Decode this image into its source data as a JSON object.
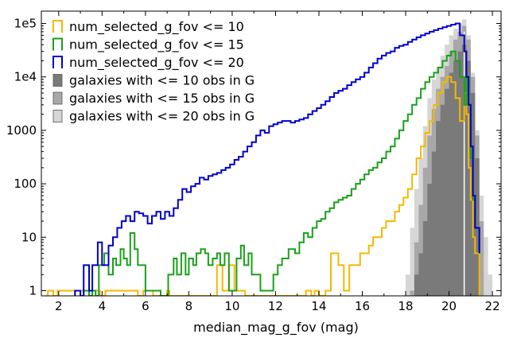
{
  "chart_data": {
    "type": "histogram",
    "xlabel": "median_mag_g_fov (mag)",
    "ylabel": "",
    "xlim": [
      1.2,
      22.4
    ],
    "ylim": [
      0.8,
      170000
    ],
    "yscale": "log",
    "x_ticks": [
      2,
      4,
      6,
      8,
      10,
      12,
      14,
      16,
      18,
      20,
      22
    ],
    "y_ticks": [
      {
        "value": 1,
        "label": "1"
      },
      {
        "value": 10,
        "label": "10"
      },
      {
        "value": 100,
        "label": "100"
      },
      {
        "value": 1000,
        "label": "1000"
      },
      {
        "value": 10000,
        "label": "1e4"
      },
      {
        "value": 100000,
        "label": "1e5"
      }
    ],
    "grid": false,
    "legend_placement": "top-left",
    "series": [
      {
        "name": "num_selected_g_fov <= 10",
        "style": "step",
        "color": "#f5b800",
        "x": [
          1.5,
          1.75,
          1.95,
          3.9,
          4.15,
          5.65,
          5.9,
          6.35,
          7.0,
          7.1,
          9.3,
          9.55,
          9.65,
          9.85,
          10.1,
          10.6,
          13.4,
          13.65,
          13.8,
          14.0,
          14.3,
          14.55,
          14.9,
          15.15,
          15.4,
          15.65,
          15.9,
          16.1,
          16.3,
          16.5,
          16.7,
          16.9,
          17.1,
          17.3,
          17.5,
          17.7,
          17.9,
          18.1,
          18.3,
          18.5,
          18.7,
          18.9,
          19.1,
          19.3,
          19.5,
          19.7,
          19.9,
          20.1,
          20.3,
          20.5,
          20.7,
          20.8,
          20.9,
          21.0,
          21.1,
          21.2,
          21.4
        ],
        "y": [
          1,
          0,
          1,
          0,
          1,
          0,
          1,
          0,
          1,
          0,
          3,
          1,
          1,
          3,
          1,
          0,
          1,
          0,
          1,
          0,
          1,
          5,
          3,
          1,
          3,
          3,
          5,
          5,
          7,
          10,
          10,
          15,
          20,
          20,
          30,
          40,
          55,
          80,
          150,
          300,
          500,
          900,
          1500,
          3000,
          5000,
          8000,
          10000,
          8000,
          4000,
          1500,
          5000,
          2000,
          200,
          50,
          10,
          5
        ]
      },
      {
        "name": "num_selected_g_fov <= 15",
        "style": "step",
        "color": "#1aa01a",
        "x": [
          2.75,
          3.0,
          3.15,
          3.4,
          3.55,
          3.7,
          3.85,
          4.1,
          4.3,
          4.5,
          4.65,
          4.85,
          5.0,
          5.15,
          5.3,
          5.5,
          5.65,
          5.85,
          6.0,
          6.2,
          6.35,
          6.55,
          6.7,
          6.9,
          7.05,
          7.3,
          7.45,
          7.65,
          7.85,
          8.0,
          8.2,
          8.35,
          8.55,
          8.75,
          8.9,
          9.1,
          9.3,
          9.45,
          9.65,
          9.85,
          10.0,
          10.2,
          10.4,
          10.55,
          10.75,
          10.9,
          11.1,
          11.3,
          11.5,
          11.7,
          11.9,
          12.1,
          12.3,
          12.6,
          12.9,
          13.1,
          13.3,
          13.5,
          13.7,
          13.9,
          14.1,
          14.3,
          14.5,
          14.7,
          14.9,
          15.1,
          15.3,
          15.5,
          15.7,
          15.9,
          16.1,
          16.3,
          16.5,
          16.7,
          16.9,
          17.1,
          17.3,
          17.5,
          17.7,
          17.9,
          18.1,
          18.3,
          18.5,
          18.7,
          18.9,
          19.1,
          19.3,
          19.5,
          19.7,
          19.9,
          20.1,
          20.3,
          20.5,
          20.7,
          20.8,
          20.9,
          21.0,
          21.1,
          21.2,
          21.4
        ],
        "y": [
          1,
          0,
          1,
          0,
          1,
          0,
          3,
          5,
          2,
          4,
          3,
          6,
          4,
          3,
          12,
          6,
          3,
          3,
          1,
          1,
          1,
          1,
          0,
          0,
          2,
          4,
          2,
          5,
          2,
          4,
          3,
          5,
          6,
          5,
          3,
          4,
          5,
          3,
          5,
          1,
          1,
          4,
          7,
          3,
          5,
          2,
          2,
          1,
          1,
          1,
          2,
          3,
          4,
          6,
          5,
          8,
          12,
          10,
          15,
          20,
          22,
          30,
          35,
          45,
          50,
          55,
          60,
          80,
          100,
          120,
          150,
          180,
          200,
          250,
          300,
          400,
          500,
          700,
          1000,
          1500,
          2000,
          3000,
          4000,
          6000,
          8000,
          10000,
          12000,
          15000,
          20000,
          25000,
          30000,
          20000,
          10000,
          3000,
          10000,
          3000,
          300,
          50,
          15,
          5
        ]
      },
      {
        "name": "num_selected_g_fov <= 20",
        "style": "step",
        "color": "#0000cc",
        "x": [
          2.75,
          3.0,
          3.15,
          3.4,
          3.55,
          3.8,
          4.0,
          4.3,
          4.5,
          4.7,
          4.9,
          5.1,
          5.3,
          5.5,
          5.7,
          5.9,
          6.1,
          6.3,
          6.5,
          6.7,
          6.9,
          7.1,
          7.3,
          7.5,
          7.7,
          7.9,
          8.1,
          8.3,
          8.5,
          8.7,
          8.9,
          9.1,
          9.3,
          9.5,
          9.7,
          9.9,
          10.1,
          10.3,
          10.5,
          10.7,
          10.9,
          11.1,
          11.3,
          11.5,
          11.7,
          11.9,
          12.1,
          12.3,
          12.5,
          12.7,
          12.9,
          13.1,
          13.3,
          13.5,
          13.7,
          13.9,
          14.1,
          14.3,
          14.5,
          14.7,
          14.9,
          15.1,
          15.3,
          15.5,
          15.7,
          15.9,
          16.1,
          16.3,
          16.5,
          16.7,
          16.9,
          17.1,
          17.3,
          17.5,
          17.7,
          17.9,
          18.1,
          18.3,
          18.5,
          18.7,
          18.9,
          19.1,
          19.3,
          19.5,
          19.7,
          19.9,
          20.1,
          20.3,
          20.5,
          20.7,
          20.8,
          20.9,
          21.0,
          21.1,
          21.2,
          21.4
        ],
        "y": [
          1,
          0,
          3,
          1,
          3,
          8,
          3,
          7,
          10,
          15,
          20,
          25,
          20,
          30,
          28,
          25,
          18,
          25,
          30,
          22,
          30,
          25,
          35,
          50,
          80,
          70,
          90,
          100,
          130,
          120,
          140,
          150,
          160,
          180,
          200,
          230,
          280,
          320,
          400,
          500,
          600,
          800,
          1000,
          900,
          1200,
          1300,
          1400,
          1500,
          1500,
          1400,
          1500,
          1600,
          1700,
          2000,
          2300,
          2600,
          3000,
          3500,
          4200,
          5000,
          5500,
          6000,
          7000,
          8000,
          9000,
          10000,
          12000,
          15000,
          18000,
          22000,
          25000,
          28000,
          30000,
          35000,
          38000,
          40000,
          45000,
          50000,
          55000,
          60000,
          65000,
          70000,
          75000,
          80000,
          85000,
          90000,
          95000,
          100000,
          60000,
          30000,
          10000,
          3000,
          500,
          60,
          15,
          5
        ]
      },
      {
        "name": "galaxies with <= 10 obs in G",
        "style": "filled",
        "color": "#7a7a7a",
        "x": [
          18.4,
          18.6,
          18.8,
          19.0,
          19.2,
          19.4,
          19.6,
          19.8,
          20.0,
          20.2,
          20.4,
          20.6,
          20.8,
          21.0,
          21.2,
          21.4
        ],
        "y": [
          2,
          5,
          20,
          100,
          400,
          1500,
          3000,
          6000,
          12000,
          20000,
          30000,
          40000,
          20000,
          5000,
          300
        ]
      },
      {
        "name": "galaxies with <= 15 obs in G",
        "style": "filled",
        "color": "#a8a8a8",
        "x": [
          18.2,
          18.4,
          18.6,
          18.8,
          19.0,
          19.2,
          19.4,
          19.6,
          19.8,
          20.0,
          20.2,
          20.4,
          20.6,
          20.8,
          21.0,
          21.2,
          21.4,
          21.6
        ],
        "y": [
          1,
          8,
          40,
          200,
          800,
          2500,
          6000,
          10000,
          16000,
          30000,
          50000,
          70000,
          90000,
          50000,
          10000,
          800,
          20
        ]
      },
      {
        "name": "galaxies with <= 20 obs in G",
        "style": "filled",
        "color": "#d6d6d6",
        "x": [
          18.0,
          18.2,
          18.4,
          18.6,
          18.8,
          19.0,
          19.2,
          19.4,
          19.6,
          19.8,
          20.0,
          20.2,
          20.4,
          20.6,
          20.8,
          21.0,
          21.2,
          21.4,
          21.6,
          21.8,
          22.0
        ],
        "y": [
          2,
          15,
          80,
          300,
          1200,
          4000,
          9000,
          15000,
          25000,
          40000,
          60000,
          80000,
          100000,
          120000,
          60000,
          12000,
          1000,
          60,
          10,
          2
        ]
      }
    ]
  }
}
